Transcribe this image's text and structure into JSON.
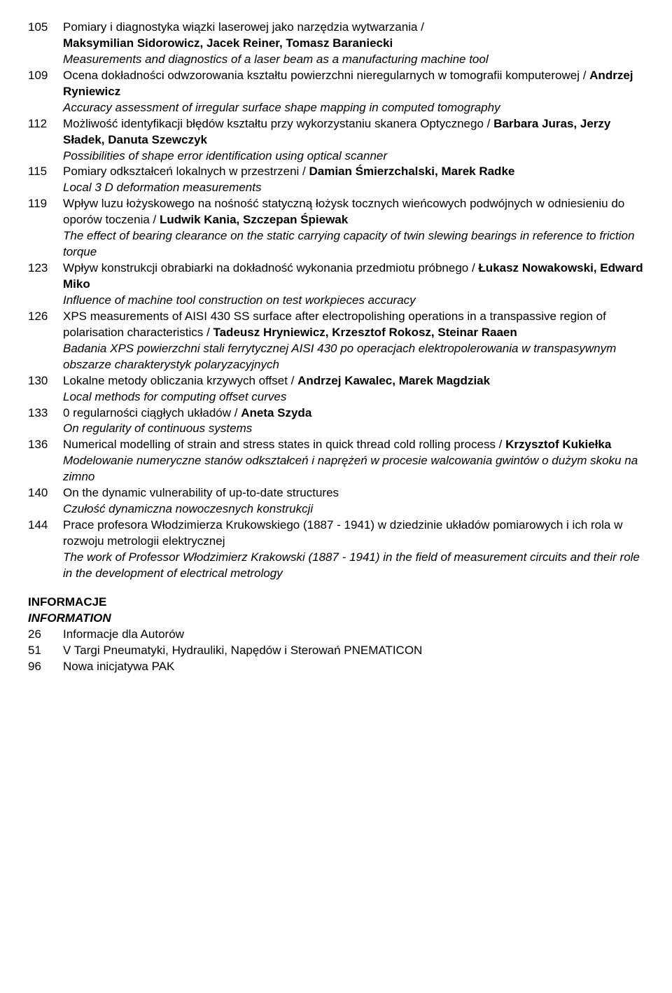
{
  "entries": [
    {
      "num": "105",
      "lines": [
        {
          "segments": [
            {
              "t": "Pomiary i diagnostyka wiązki laserowej jako narzędzia wytwarzania / "
            }
          ]
        },
        {
          "segments": [
            {
              "t": "Maksymilian Sidorowicz, Jacek Reiner, Tomasz Baraniecki",
              "b": true
            }
          ]
        },
        {
          "segments": [
            {
              "t": "Measurements and diagnostics of a laser beam as a manufacturing machine tool",
              "i": true
            }
          ]
        }
      ]
    },
    {
      "num": "109",
      "lines": [
        {
          "segments": [
            {
              "t": "Ocena dokładności odwzorowania kształtu powierzchni nieregularnych w tomografii komputerowej / "
            },
            {
              "t": "Andrzej Ryniewicz",
              "b": true
            }
          ]
        },
        {
          "segments": [
            {
              "t": "Accuracy assessment of irregular surface shape mapping in computed tomography",
              "i": true
            }
          ]
        }
      ]
    },
    {
      "num": "112",
      "lines": [
        {
          "segments": [
            {
              "t": "Możliwość identyfikacji błędów kształtu przy wykorzystaniu skanera Optycznego / "
            },
            {
              "t": "Barbara Juras, Jerzy Sładek, Danuta Szewczyk",
              "b": true
            }
          ]
        },
        {
          "segments": [
            {
              "t": "Possibilities of shape error identification using optical scanner",
              "i": true
            }
          ]
        }
      ]
    },
    {
      "num": "115",
      "lines": [
        {
          "segments": [
            {
              "t": "Pomiary odkształceń lokalnych w przestrzeni / "
            },
            {
              "t": "Damian Śmierzchalski, Marek Radke",
              "b": true
            }
          ]
        },
        {
          "segments": [
            {
              "t": "Local 3 D deformation measurements",
              "i": true
            }
          ]
        }
      ]
    },
    {
      "num": "119",
      "lines": [
        {
          "segments": [
            {
              "t": "Wpływ luzu łożyskowego na nośność statyczną łożysk tocznych wieńcowych podwójnych w odniesieniu do oporów toczenia / "
            },
            {
              "t": "Ludwik Kania, Szczepan Śpiewak",
              "b": true
            }
          ]
        },
        {
          "segments": [
            {
              "t": "The effect of bearing clearance on the static carrying capacity of twin slewing bearings in reference to friction torque",
              "i": true
            }
          ]
        }
      ]
    },
    {
      "num": "123",
      "lines": [
        {
          "segments": [
            {
              "t": "Wpływ konstrukcji obrabiarki na dokładność wykonania przedmiotu próbnego / "
            },
            {
              "t": "Łukasz Nowakowski, Edward Miko",
              "b": true
            }
          ]
        },
        {
          "segments": [
            {
              "t": "Influence of machine tool construction on test workpieces accuracy",
              "i": true
            }
          ]
        }
      ]
    },
    {
      "num": "126",
      "lines": [
        {
          "segments": [
            {
              "t": "XPS measurements of AISI 430 SS surface after electropolishing operations in a transpassive region of polarisation characteristics / "
            },
            {
              "t": "Tadeusz Hryniewicz, Krzesztof Rokosz, Steinar Raaen",
              "b": true
            }
          ]
        },
        {
          "segments": [
            {
              "t": "Badania XPS powierzchni stali ferrytycznej AISI 430 po operacjach elektropolerowania w transpasywnym obszarze charakterystyk polaryzacyjnych",
              "i": true
            }
          ]
        }
      ]
    },
    {
      "num": "130",
      "lines": [
        {
          "segments": [
            {
              "t": "Lokalne metody obliczania krzywych offset / "
            },
            {
              "t": "Andrzej Kawalec, Marek Magdziak",
              "b": true
            }
          ]
        },
        {
          "segments": [
            {
              "t": "Local methods for computing offset curves",
              "i": true
            }
          ]
        }
      ]
    },
    {
      "num": "133",
      "lines": [
        {
          "segments": [
            {
              "t": "0 regularności ciągłych układów / "
            },
            {
              "t": "Aneta Szyda",
              "b": true
            }
          ]
        },
        {
          "segments": [
            {
              "t": "On regularity of continuous systems",
              "i": true
            }
          ]
        }
      ]
    },
    {
      "num": "136",
      "lines": [
        {
          "segments": [
            {
              "t": "Numerical modelling of strain and stress states in quick thread cold rolling process / "
            },
            {
              "t": "Krzysztof Kukiełka",
              "b": true
            }
          ]
        },
        {
          "segments": [
            {
              "t": "Modelowanie numeryczne stanów odkształceń i naprężeń w procesie walcowania gwintów o dużym skoku na zimno",
              "i": true
            }
          ]
        }
      ]
    },
    {
      "num": "140",
      "lines": [
        {
          "segments": [
            {
              "t": "On the dynamic vulnerability of up-to-date structures"
            }
          ]
        },
        {
          "segments": [
            {
              "t": "Czułość dynamiczna nowoczesnych konstrukcji",
              "i": true
            }
          ]
        }
      ]
    },
    {
      "num": "144",
      "lines": [
        {
          "segments": [
            {
              "t": "Prace profesora Włodzimierza Krukowskiego (1887 - 1941) w dziedzinie układów pomiarowych i ich rola w rozwoju metrologii elektrycznej"
            }
          ]
        },
        {
          "segments": [
            {
              "t": "The work of Professor Włodzimierz Krakowski (1887 - 1941) in the field of measurement circuits and their role in the development of electrical metrology",
              "i": true
            }
          ]
        }
      ]
    }
  ],
  "section": {
    "heading1": "INFORMACJE",
    "heading2": "INFORMATION",
    "items": [
      {
        "num": "26",
        "text": "Informacje dla Autorów"
      },
      {
        "num": "51",
        "text": "V Targi Pneumatyki, Hydrauliki, Napędów i Sterowań PNEMATICON"
      },
      {
        "num": "96",
        "text": "Nowa inicjatywa PAK"
      }
    ]
  }
}
